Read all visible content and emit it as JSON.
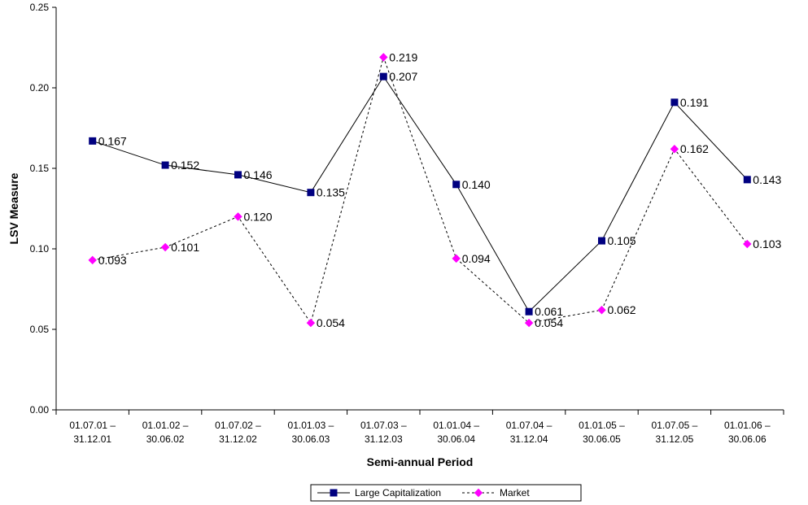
{
  "chart_data": {
    "type": "line",
    "title": "",
    "xlabel": "Semi-annual Period",
    "ylabel": "LSV Measure",
    "ylim": [
      0,
      0.25
    ],
    "yticks": [
      "0.00",
      "0.05",
      "0.10",
      "0.15",
      "0.20",
      "0.25"
    ],
    "grid": false,
    "legend_position": "bottom-center",
    "categories": [
      [
        "01.07.01 –",
        "31.12.01"
      ],
      [
        "01.01.02 –",
        "30.06.02"
      ],
      [
        "01.07.02 –",
        "31.12.02"
      ],
      [
        "01.01.03 –",
        "30.06.03"
      ],
      [
        "01.07.03 –",
        "31.12.03"
      ],
      [
        "01.01.04 –",
        "30.06.04"
      ],
      [
        "01.07.04 –",
        "31.12.04"
      ],
      [
        "01.01.05 –",
        "30.06.05"
      ],
      [
        "01.07.05 –",
        "31.12.05"
      ],
      [
        "01.01.06 –",
        "30.06.06"
      ]
    ],
    "series": [
      {
        "name": "Large Capitalization",
        "values": [
          0.167,
          0.152,
          0.146,
          0.135,
          0.207,
          0.14,
          0.061,
          0.105,
          0.191,
          0.143
        ],
        "labels": [
          "0.167",
          "0.152",
          "0.146",
          "0.135",
          "0.207",
          "0.140",
          "0.061",
          "0.105",
          "0.191",
          "0.143"
        ],
        "color": "#000080",
        "line_color": "#000000",
        "line_style": "solid",
        "marker": "square"
      },
      {
        "name": "Market",
        "values": [
          0.093,
          0.101,
          0.12,
          0.054,
          0.219,
          0.094,
          0.054,
          0.062,
          0.162,
          0.103
        ],
        "labels": [
          "0.093",
          "0.101",
          "0.120",
          "0.054",
          "0.219",
          "0.094",
          "0.054",
          "0.062",
          "0.162",
          "0.103"
        ],
        "color": "#ff00ff",
        "line_color": "#000000",
        "line_style": "dotted",
        "marker": "diamond"
      }
    ]
  }
}
